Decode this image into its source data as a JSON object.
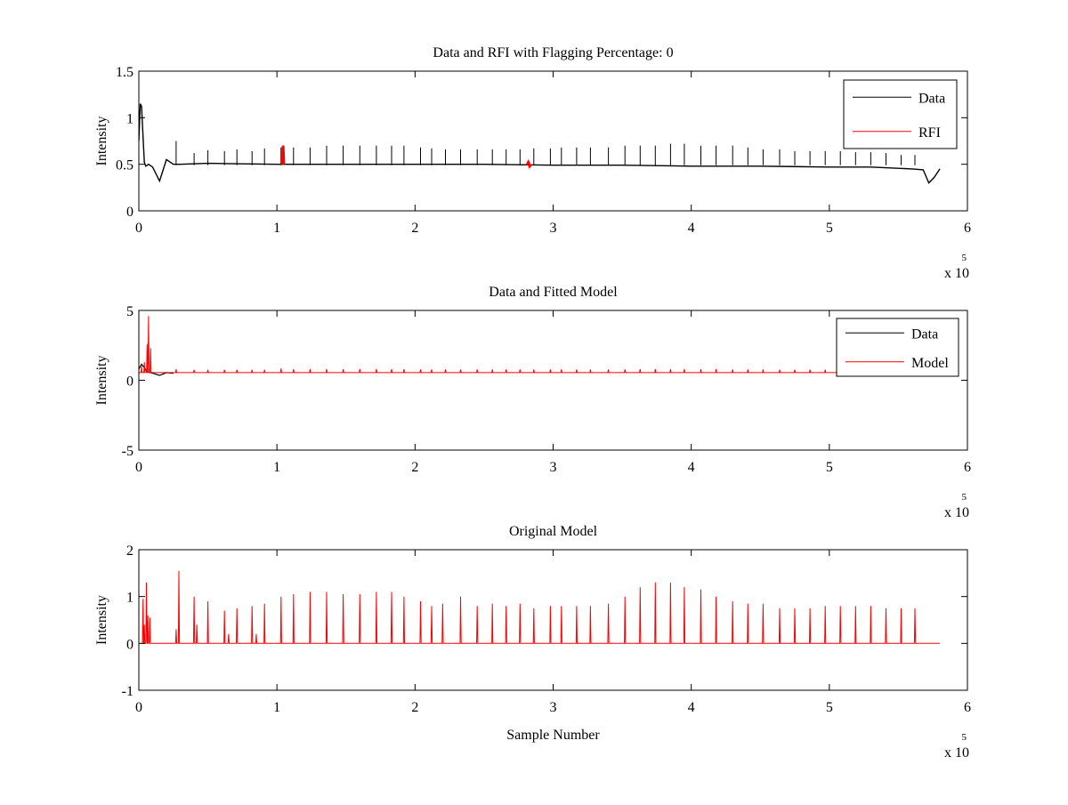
{
  "figure": {
    "background": "#ffffff"
  },
  "colors": {
    "data": "#000000",
    "rfi": "#ff0000",
    "model": "#ff0000",
    "axes": "#000000"
  },
  "chart_data": [
    {
      "type": "line",
      "title": "Data and RFI with Flagging Percentage: 0",
      "xlabel": "",
      "ylabel": "Intensity",
      "xlim": [
        0,
        6
      ],
      "ylim": [
        0,
        1.5
      ],
      "xticks": [
        0,
        1,
        2,
        3,
        4,
        5,
        6
      ],
      "xtick_labels": [
        "0",
        "1",
        "2",
        "3",
        "4",
        "5",
        "6"
      ],
      "yticks": [
        0,
        0.5,
        1,
        1.5
      ],
      "ytick_labels": [
        "0",
        "0.5",
        "1",
        "1.5"
      ],
      "x_multiplier": {
        "base": "x 10",
        "exponent": "5"
      },
      "legend": {
        "placement": "top-right",
        "entries": [
          {
            "label": "Data",
            "color": "#000000"
          },
          {
            "label": "RFI",
            "color": "#ff0000"
          }
        ]
      },
      "series": [
        {
          "name": "Data",
          "color": "#000000",
          "baseline": 0.49,
          "x": [
            0,
            0.01,
            0.02,
            0.03,
            0.04,
            0.05,
            0.07,
            0.1,
            0.15,
            0.2,
            0.25,
            0.3,
            0.5,
            1.0,
            1.5,
            2.0,
            2.5,
            3.0,
            3.5,
            4.0,
            4.5,
            5.0,
            5.3,
            5.6,
            5.68,
            5.72,
            5.76,
            5.8
          ],
          "y": [
            0.75,
            1.15,
            1.12,
            0.8,
            0.52,
            0.48,
            0.5,
            0.47,
            0.32,
            0.55,
            0.5,
            0.5,
            0.51,
            0.5,
            0.5,
            0.5,
            0.5,
            0.49,
            0.49,
            0.48,
            0.48,
            0.47,
            0.47,
            0.45,
            0.44,
            0.3,
            0.36,
            0.45
          ],
          "spike_positions": [
            0.27,
            0.4,
            0.5,
            0.62,
            0.71,
            0.82,
            0.91,
            1.03,
            1.12,
            1.24,
            1.36,
            1.48,
            1.6,
            1.72,
            1.83,
            1.92,
            2.04,
            2.12,
            2.22,
            2.33,
            2.45,
            2.56,
            2.66,
            2.76,
            2.86,
            2.98,
            3.06,
            3.17,
            3.27,
            3.4,
            3.52,
            3.63,
            3.74,
            3.85,
            3.95,
            4.07,
            4.18,
            4.3,
            4.41,
            4.52,
            4.64,
            4.75,
            4.86,
            4.97,
            5.08,
            5.19,
            5.3,
            5.41,
            5.52,
            5.62
          ],
          "spike_heights": [
            0.75,
            0.62,
            0.65,
            0.64,
            0.66,
            0.64,
            0.67,
            0.68,
            0.68,
            0.68,
            0.7,
            0.7,
            0.7,
            0.7,
            0.7,
            0.7,
            0.68,
            0.67,
            0.66,
            0.66,
            0.66,
            0.66,
            0.66,
            0.66,
            0.67,
            0.67,
            0.68,
            0.68,
            0.68,
            0.68,
            0.7,
            0.7,
            0.7,
            0.72,
            0.72,
            0.7,
            0.7,
            0.7,
            0.68,
            0.66,
            0.66,
            0.64,
            0.64,
            0.64,
            0.64,
            0.63,
            0.63,
            0.62,
            0.6,
            0.6
          ]
        },
        {
          "name": "RFI",
          "color": "#ff0000",
          "segments": [
            {
              "x": [
                1.04,
                1.045,
                1.05
              ],
              "y": [
                0.5,
                0.7,
                0.5
              ]
            },
            {
              "x": [
                2.81,
                2.82,
                2.83,
                2.84
              ],
              "y": [
                0.49,
                0.52,
                0.48,
                0.5
              ]
            }
          ]
        }
      ]
    },
    {
      "type": "line",
      "title": "Data and Fitted Model",
      "xlabel": "",
      "ylabel": "Intensity",
      "xlim": [
        0,
        6
      ],
      "ylim": [
        -5,
        5
      ],
      "xticks": [
        0,
        1,
        2,
        3,
        4,
        5,
        6
      ],
      "xtick_labels": [
        "0",
        "1",
        "2",
        "3",
        "4",
        "5",
        "6"
      ],
      "yticks": [
        -5,
        0,
        5
      ],
      "ytick_labels": [
        "-5",
        "0",
        "5"
      ],
      "x_multiplier": {
        "base": "x 10",
        "exponent": "5"
      },
      "legend": {
        "placement": "top-right",
        "entries": [
          {
            "label": "Data",
            "color": "#000000"
          },
          {
            "label": "Model",
            "color": "#ff0000"
          }
        ]
      },
      "series": [
        {
          "name": "Data",
          "color": "#000000",
          "x": [
            0,
            0.02,
            0.04,
            0.06,
            0.1,
            0.15,
            0.2,
            0.25
          ],
          "y": [
            0.8,
            1.15,
            0.9,
            0.6,
            0.5,
            0.35,
            0.55,
            0.5
          ]
        },
        {
          "name": "Model",
          "color": "#ff0000",
          "baseline": 0.55,
          "x_end": 5.8,
          "spike_positions": [
            0.02,
            0.04,
            0.06,
            0.07,
            0.085,
            0.27,
            0.4,
            0.5,
            0.62,
            0.71,
            0.82,
            0.91,
            1.03,
            1.12,
            1.24,
            1.36,
            1.48,
            1.6,
            1.72,
            1.83,
            1.92,
            2.04,
            2.12,
            2.22,
            2.33,
            2.45,
            2.56,
            2.66,
            2.76,
            2.86,
            2.98,
            3.06,
            3.17,
            3.27,
            3.4,
            3.52,
            3.63,
            3.74,
            3.85,
            3.95,
            4.07,
            4.18,
            4.3,
            4.41,
            4.52,
            4.64,
            4.75,
            4.86,
            4.97
          ],
          "spike_heights": [
            1.0,
            1.3,
            2.6,
            4.6,
            2.3,
            0.8,
            0.75,
            0.75,
            0.75,
            0.75,
            0.75,
            0.75,
            0.85,
            0.8,
            0.8,
            0.8,
            0.8,
            0.8,
            0.8,
            0.8,
            0.8,
            0.78,
            0.78,
            0.78,
            0.78,
            0.78,
            0.78,
            0.78,
            0.78,
            0.78,
            0.78,
            0.78,
            0.78,
            0.78,
            0.78,
            0.78,
            0.8,
            0.8,
            0.8,
            0.8,
            0.8,
            0.8,
            0.78,
            0.78,
            0.78,
            0.76,
            0.76,
            0.76,
            0.76
          ]
        }
      ]
    },
    {
      "type": "line",
      "title": "Original Model",
      "xlabel": "Sample Number",
      "ylabel": "Intensity",
      "xlim": [
        0,
        6
      ],
      "ylim": [
        -1,
        2
      ],
      "xticks": [
        0,
        1,
        2,
        3,
        4,
        5,
        6
      ],
      "xtick_labels": [
        "0",
        "1",
        "2",
        "3",
        "4",
        "5",
        "6"
      ],
      "yticks": [
        -1,
        0,
        1,
        2
      ],
      "ytick_labels": [
        "-1",
        "0",
        "1",
        "2"
      ],
      "x_multiplier": {
        "base": "x 10",
        "exponent": "5"
      },
      "series": [
        {
          "name": "Model",
          "color": "#ff0000",
          "baseline": 0,
          "x_start": 0.02,
          "x_end": 5.8,
          "spike_positions": [
            0.03,
            0.04,
            0.055,
            0.065,
            0.08,
            0.27,
            0.29,
            0.4,
            0.42,
            0.5,
            0.62,
            0.65,
            0.71,
            0.82,
            0.85,
            0.91,
            1.03,
            1.12,
            1.24,
            1.36,
            1.48,
            1.6,
            1.72,
            1.83,
            1.92,
            2.04,
            2.12,
            2.2,
            2.33,
            2.45,
            2.56,
            2.66,
            2.76,
            2.86,
            2.98,
            3.06,
            3.17,
            3.27,
            3.4,
            3.52,
            3.63,
            3.74,
            3.85,
            3.95,
            4.07,
            4.18,
            4.3,
            4.41,
            4.52,
            4.64,
            4.75,
            4.86,
            4.97,
            5.08,
            5.19,
            5.3,
            5.41,
            5.52,
            5.62
          ],
          "spike_heights": [
            0.95,
            0.4,
            1.3,
            0.6,
            0.55,
            0.3,
            1.55,
            1.0,
            0.4,
            0.9,
            0.7,
            0.2,
            0.75,
            0.8,
            0.2,
            0.85,
            1.0,
            1.05,
            1.1,
            1.1,
            1.05,
            1.05,
            1.1,
            1.1,
            1.0,
            0.9,
            0.8,
            0.85,
            1.0,
            0.8,
            0.85,
            0.8,
            0.85,
            0.75,
            0.8,
            0.8,
            0.8,
            0.8,
            0.85,
            1.0,
            1.2,
            1.3,
            1.3,
            1.2,
            1.15,
            1.0,
            0.9,
            0.85,
            0.85,
            0.75,
            0.75,
            0.75,
            0.8,
            0.8,
            0.8,
            0.8,
            0.75,
            0.75,
            0.75
          ]
        }
      ]
    }
  ]
}
